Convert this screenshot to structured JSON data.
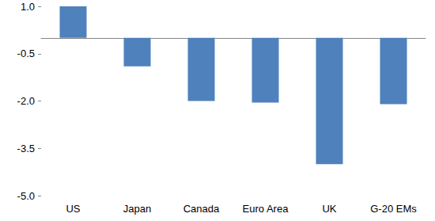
{
  "chart_data": {
    "type": "bar",
    "categories": [
      "US",
      "Japan",
      "Canada",
      "Euro Area",
      "UK",
      "G-20 EMs"
    ],
    "values": [
      1.0,
      -0.9,
      -2.0,
      -2.05,
      -4.0,
      -2.1
    ],
    "color": "#4f81bd",
    "ylim": [
      -5,
      1
    ],
    "yticks": [
      {
        "value": -5,
        "label": "-5.0"
      },
      -3.5,
      {
        "value": -2,
        "label": "-2.0"
      },
      -0.5,
      {
        "value": 1,
        "label": "1.0"
      }
    ],
    "grid": false
  }
}
